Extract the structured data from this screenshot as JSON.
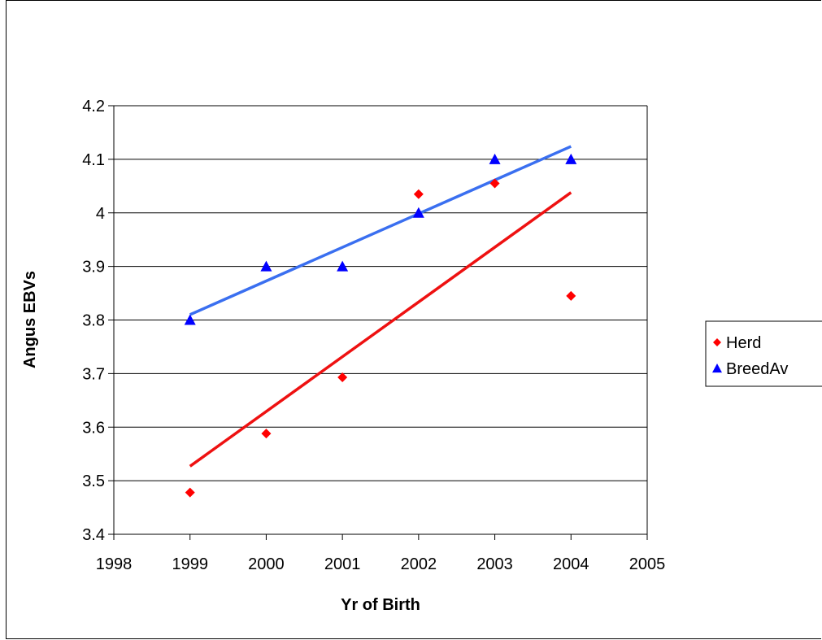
{
  "chart_data": {
    "type": "scatter",
    "title": "",
    "xlabel": "Yr of Birth",
    "ylabel": "Angus EBVs",
    "xlim": [
      1998,
      2005
    ],
    "ylim": [
      3.4,
      4.2
    ],
    "x_ticks": [
      "1998",
      "1999",
      "2000",
      "2001",
      "2002",
      "2003",
      "2004",
      "2005"
    ],
    "y_ticks": [
      "3.4",
      "3.5",
      "3.6",
      "3.7",
      "3.8",
      "3.9",
      "4",
      "4.1",
      "4.2"
    ],
    "grid": "horizontal",
    "legend_position": "right",
    "series": [
      {
        "name": "Herd",
        "marker": "diamond",
        "color": "#ff0000",
        "x": [
          1999,
          2000,
          2001,
          2002,
          2003,
          2004
        ],
        "y": [
          3.478,
          3.588,
          3.693,
          4.035,
          4.055,
          3.845
        ],
        "trendline": {
          "x": [
            1999,
            2004
          ],
          "y": [
            3.527,
            4.038
          ],
          "color": "#ee1111"
        }
      },
      {
        "name": "BreedAv",
        "marker": "triangle",
        "color": "#0000ff",
        "x": [
          1999,
          2000,
          2001,
          2002,
          2003,
          2004
        ],
        "y": [
          3.8,
          3.9,
          3.9,
          4.0,
          4.1,
          4.1
        ],
        "trendline": {
          "x": [
            1999,
            2004
          ],
          "y": [
            3.81,
            4.124
          ],
          "color": "#3a6ff0"
        }
      }
    ]
  }
}
